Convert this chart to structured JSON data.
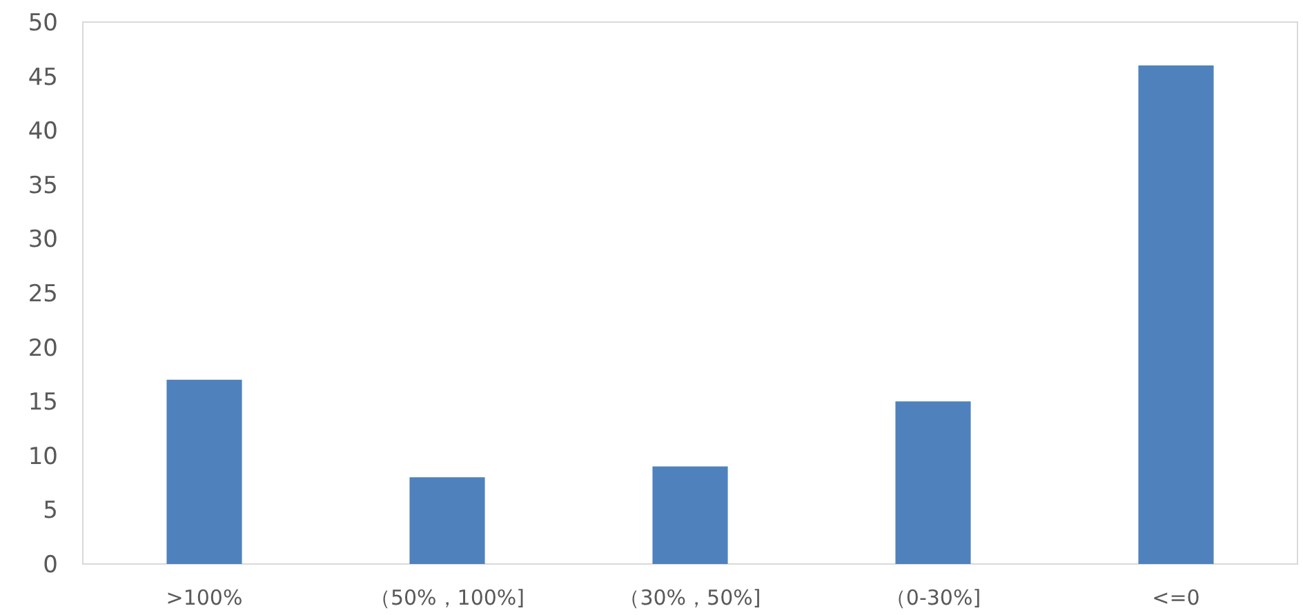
{
  "chart_data": {
    "type": "bar",
    "categories": [
      ">100%",
      "（50%，100%]",
      "（30%，50%]",
      "（0-30%]",
      "<=0"
    ],
    "values": [
      17,
      8,
      9,
      15,
      46
    ],
    "color": "#4f81bd",
    "ylim": [
      0,
      50
    ],
    "yticks": [
      0,
      5,
      10,
      15,
      20,
      25,
      30,
      35,
      40,
      45,
      50
    ],
    "grid": false
  }
}
